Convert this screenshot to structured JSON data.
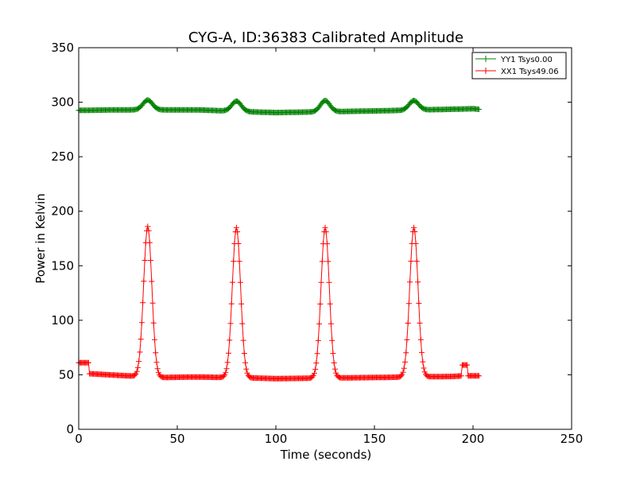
{
  "chart_data": {
    "type": "line",
    "title": "CYG-A, ID:36383 Calibrated Amplitude",
    "xlabel": "Time (seconds)",
    "ylabel": "Power in Kelvin",
    "xlim": [
      0,
      250
    ],
    "ylim": [
      0,
      350
    ],
    "xticks": [
      "0",
      "50",
      "100",
      "150",
      "200",
      "250"
    ],
    "yticks": [
      "0",
      "50",
      "100",
      "150",
      "200",
      "250",
      "300",
      "350"
    ],
    "grid": false,
    "legend_placement": "top-right",
    "marker": "+",
    "series": [
      {
        "name": "YY1 Tsys0.00",
        "color": "#008000",
        "baseline": [
          [
            0,
            292.5
          ],
          [
            20,
            293
          ],
          [
            60,
            293
          ],
          [
            90,
            291
          ],
          [
            100,
            290.5
          ],
          [
            150,
            292
          ],
          [
            200,
            294
          ],
          [
            203,
            293.5
          ]
        ],
        "peaks": [
          {
            "x": 35,
            "y": 302,
            "width": 2.4
          },
          {
            "x": 80,
            "y": 301,
            "width": 2.4
          },
          {
            "x": 125,
            "y": 301.5,
            "width": 2.4
          },
          {
            "x": 170,
            "y": 301.5,
            "width": 2.4
          }
        ],
        "x_range": [
          0,
          203
        ]
      },
      {
        "name": "XX1 Tsys49.06",
        "color": "#ff0000",
        "baseline": [
          [
            0,
            61
          ],
          [
            5,
            61
          ],
          [
            5.5,
            51
          ],
          [
            30,
            48.5
          ],
          [
            40,
            47.5
          ],
          [
            60,
            48
          ],
          [
            90,
            47
          ],
          [
            100,
            46.5
          ],
          [
            150,
            47.5
          ],
          [
            190,
            48.5
          ],
          [
            194,
            49
          ],
          [
            194.5,
            59
          ],
          [
            197,
            59
          ],
          [
            197.5,
            49
          ],
          [
            203,
            49
          ]
        ],
        "peaks": [
          {
            "x": 35,
            "y": 186,
            "width": 2.1
          },
          {
            "x": 80,
            "y": 185,
            "width": 2.1
          },
          {
            "x": 125,
            "y": 185,
            "width": 2.1
          },
          {
            "x": 170,
            "y": 185,
            "width": 2.1
          }
        ],
        "x_range": [
          0,
          203
        ]
      }
    ]
  }
}
